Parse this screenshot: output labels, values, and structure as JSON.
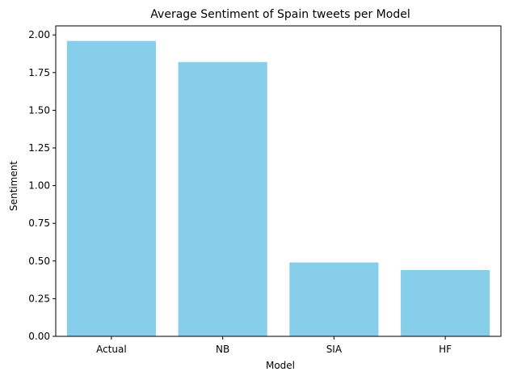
{
  "chart_data": {
    "type": "bar",
    "title": "Average Sentiment of Spain tweets per Model",
    "xlabel": "Model",
    "ylabel": "Sentiment",
    "categories": [
      "Actual",
      "NB",
      "SIA",
      "HF"
    ],
    "values": [
      1.96,
      1.82,
      0.49,
      0.44
    ],
    "ylim": [
      0,
      2.06
    ],
    "yticks": [
      0.0,
      0.25,
      0.5,
      0.75,
      1.0,
      1.25,
      1.5,
      1.75,
      2.0
    ],
    "ytick_labels": [
      "0.00",
      "0.25",
      "0.50",
      "0.75",
      "1.00",
      "1.25",
      "1.50",
      "1.75",
      "2.00"
    ],
    "bar_color": "#87ceeb",
    "grid": false,
    "legend": "none"
  }
}
